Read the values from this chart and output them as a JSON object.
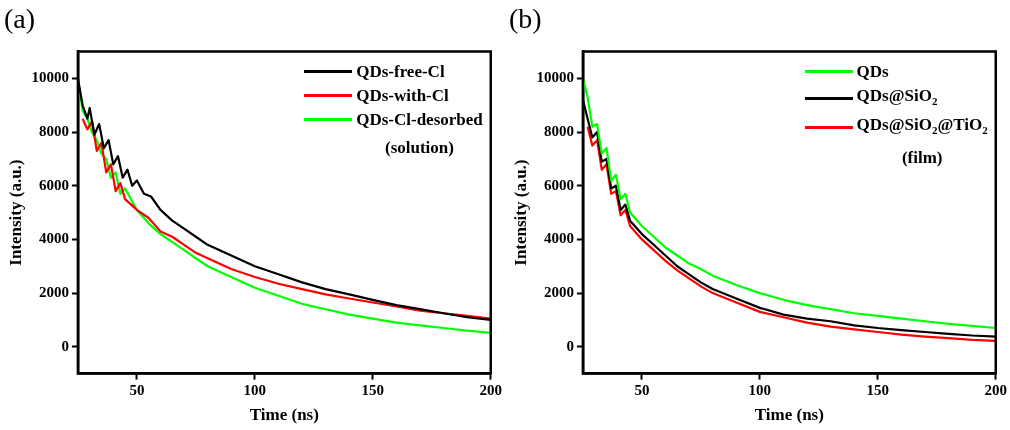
{
  "chart_data": [
    {
      "type": "line",
      "title": "(a)",
      "xlabel": "Time (ns)",
      "ylabel": "Intensity (a.u.)",
      "xlim": [
        25,
        200
      ],
      "xticks": [
        50,
        100,
        150,
        200
      ],
      "ylim": [
        -1000,
        11000
      ],
      "yticks": [
        0,
        2000,
        4000,
        6000,
        8000,
        10000
      ],
      "grid": false,
      "legend": "top right",
      "marker": "none",
      "line_style": "solid",
      "annotations": [
        "(solution)"
      ],
      "series": [
        {
          "name": "QDs-free-Cl",
          "color": "#000000",
          "x": [
            25,
            27,
            29,
            30,
            32,
            34,
            36,
            38,
            40,
            42,
            44,
            46,
            48,
            50,
            53,
            56,
            60,
            65,
            70,
            75,
            80,
            90,
            100,
            110,
            120,
            130,
            140,
            150,
            160,
            170,
            180,
            190,
            200
          ],
          "values": [
            10000,
            9000,
            8500,
            8900,
            7900,
            8300,
            7400,
            7700,
            6800,
            7100,
            6300,
            6600,
            6000,
            6200,
            5700,
            5600,
            5100,
            4700,
            4400,
            4100,
            3800,
            3400,
            3000,
            2700,
            2400,
            2150,
            1950,
            1750,
            1550,
            1400,
            1250,
            1100,
            1000
          ]
        },
        {
          "name": "QDs-with-Cl",
          "color": "#ff0000",
          "x": [
            27,
            29,
            31,
            33,
            35,
            37,
            39,
            41,
            43,
            45,
            50,
            55,
            60,
            65,
            70,
            75,
            80,
            90,
            100,
            110,
            120,
            130,
            140,
            150,
            160,
            170,
            180,
            190,
            200
          ],
          "values": [
            8500,
            8100,
            8400,
            7300,
            7600,
            6500,
            6800,
            5800,
            6100,
            5500,
            5100,
            4800,
            4300,
            4100,
            3800,
            3500,
            3300,
            2900,
            2600,
            2350,
            2150,
            1950,
            1800,
            1650,
            1500,
            1350,
            1250,
            1150,
            1050
          ]
        },
        {
          "name": "QDs-Cl-desorbed",
          "color": "#00ff00",
          "x": [
            25,
            27,
            29,
            31,
            33,
            35,
            37,
            39,
            41,
            43,
            45,
            50,
            55,
            60,
            65,
            70,
            75,
            80,
            90,
            100,
            110,
            120,
            130,
            140,
            150,
            160,
            170,
            180,
            190,
            200
          ],
          "values": [
            10000,
            8800,
            8500,
            8000,
            7700,
            7200,
            7000,
            6300,
            6500,
            5700,
            5900,
            5100,
            4600,
            4200,
            3900,
            3600,
            3300,
            3000,
            2600,
            2200,
            1900,
            1600,
            1400,
            1200,
            1050,
            900,
            800,
            700,
            600,
            520
          ]
        }
      ]
    },
    {
      "type": "line",
      "title": "(b)",
      "xlabel": "Time (ns)",
      "ylabel": "Intensity (a.u.)",
      "xlim": [
        25,
        200
      ],
      "xticks": [
        50,
        100,
        150,
        200
      ],
      "ylim": [
        -1000,
        11000
      ],
      "yticks": [
        0,
        2000,
        4000,
        6000,
        8000,
        10000
      ],
      "grid": false,
      "legend": "top right",
      "marker": "none",
      "line_style": "solid",
      "annotations": [
        "(film)"
      ],
      "series": [
        {
          "name": "QDs",
          "color": "#00ff00",
          "x": [
            25,
            27,
            29,
            31,
            33,
            35,
            37,
            39,
            41,
            43,
            45,
            50,
            55,
            60,
            65,
            70,
            75,
            80,
            90,
            100,
            110,
            120,
            130,
            140,
            150,
            160,
            170,
            180,
            190,
            200
          ],
          "values": [
            10000,
            9300,
            8200,
            8300,
            7200,
            7400,
            6200,
            6400,
            5500,
            5700,
            5000,
            4500,
            4100,
            3700,
            3400,
            3100,
            2900,
            2650,
            2300,
            2000,
            1750,
            1550,
            1400,
            1250,
            1150,
            1050,
            950,
            850,
            780,
            700
          ]
        },
        {
          "name": "QDs@SiO$_{2}$",
          "color": "#000000",
          "x": [
            25,
            27,
            29,
            31,
            33,
            35,
            37,
            39,
            41,
            43,
            45,
            50,
            55,
            60,
            65,
            70,
            75,
            80,
            90,
            100,
            110,
            120,
            130,
            140,
            150,
            160,
            170,
            180,
            190,
            200
          ],
          "values": [
            9200,
            8500,
            7800,
            8000,
            6900,
            7000,
            5900,
            6000,
            5100,
            5300,
            4700,
            4200,
            3800,
            3400,
            3000,
            2700,
            2400,
            2150,
            1800,
            1450,
            1200,
            1050,
            950,
            800,
            700,
            620,
            550,
            480,
            420,
            380
          ]
        },
        {
          "name": "QDs@SiO$_{2}$@TiO$_{2}$",
          "color": "#ff0000",
          "x": [
            27,
            29,
            31,
            33,
            35,
            37,
            39,
            41,
            43,
            45,
            50,
            55,
            60,
            65,
            70,
            75,
            80,
            90,
            100,
            110,
            120,
            130,
            140,
            150,
            160,
            170,
            180,
            190,
            200
          ],
          "values": [
            8200,
            7500,
            7700,
            6600,
            6800,
            5700,
            5800,
            4900,
            5100,
            4500,
            4000,
            3600,
            3200,
            2850,
            2550,
            2250,
            2000,
            1650,
            1300,
            1100,
            900,
            750,
            650,
            550,
            450,
            380,
            320,
            260,
            220
          ]
        }
      ]
    }
  ]
}
